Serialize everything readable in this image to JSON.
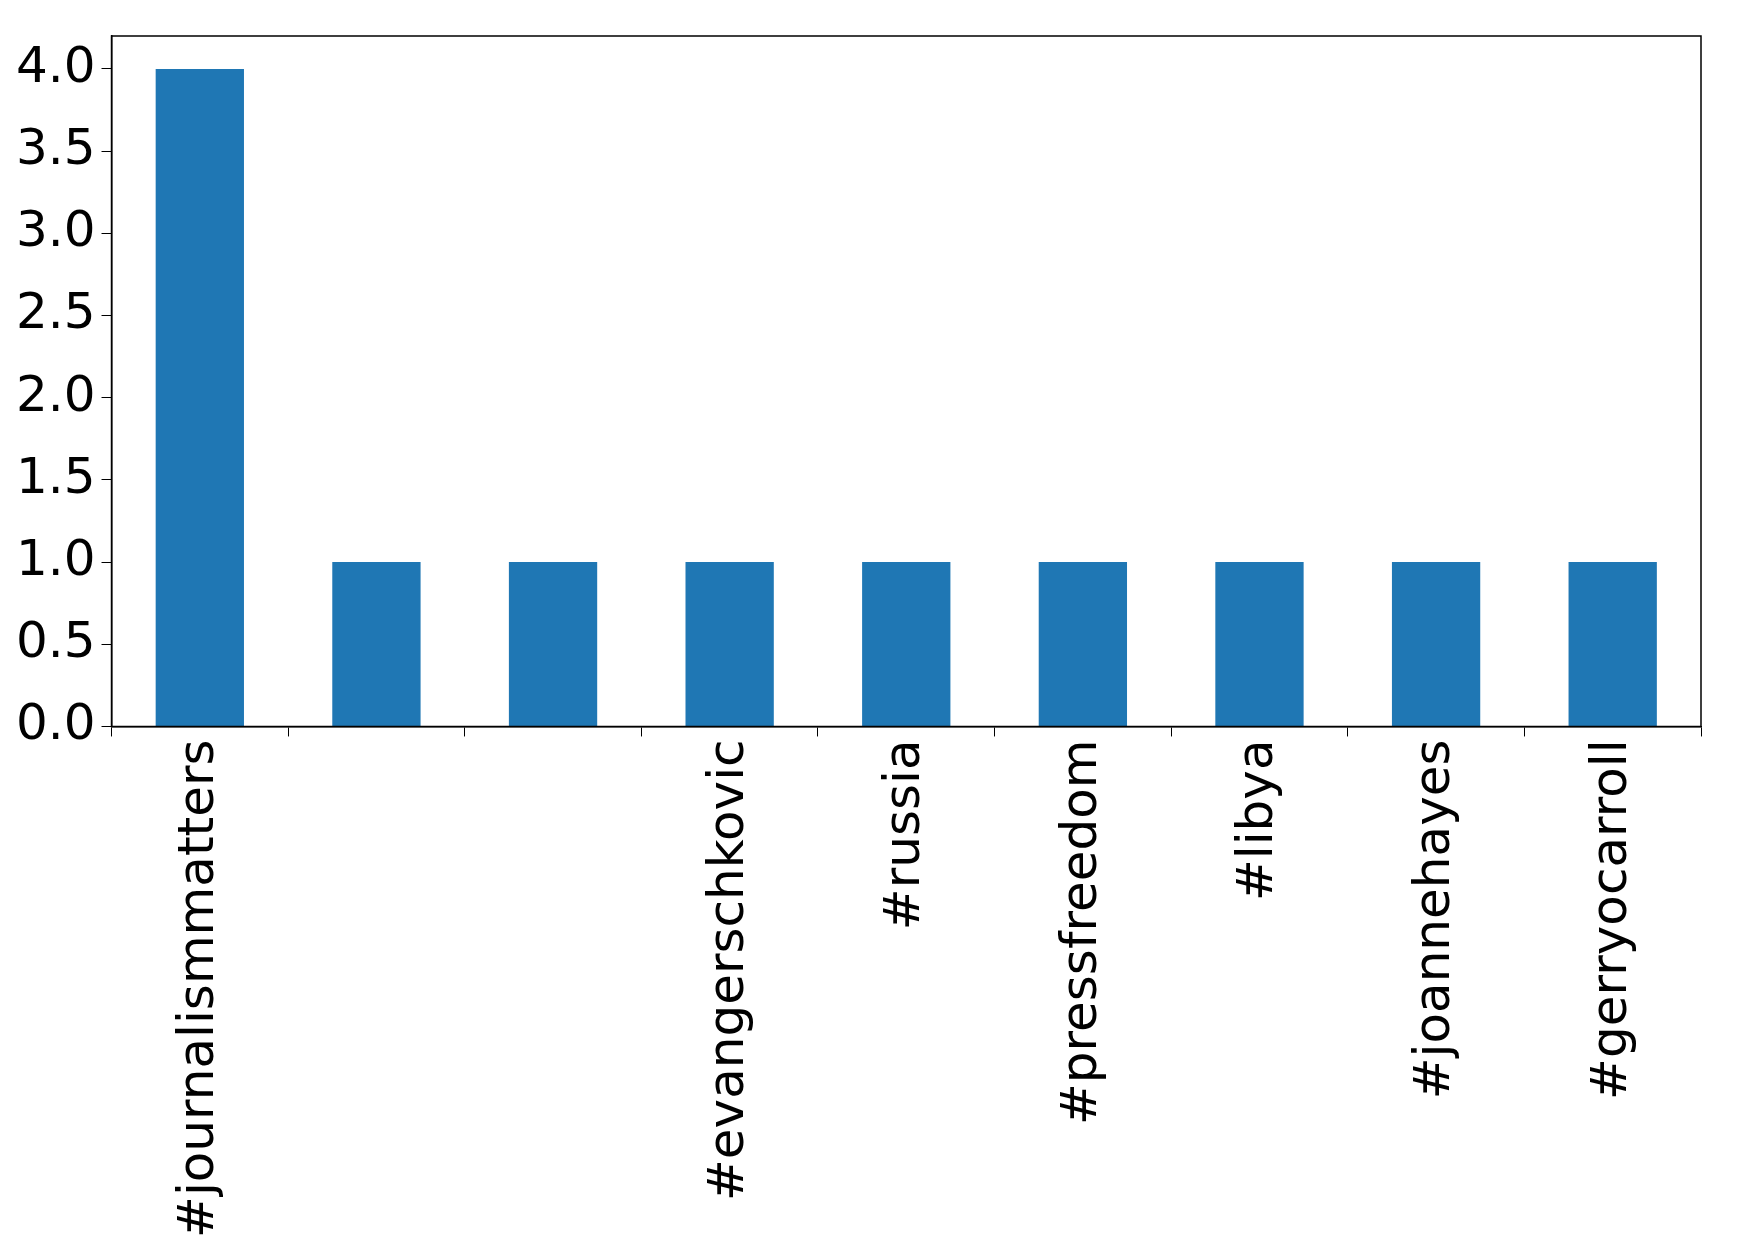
{
  "chart_data": {
    "type": "bar",
    "categories": [
      "#journalismmatters",
      null,
      null,
      "#evangerschkovic",
      "#russia",
      "#pressfreedom",
      "#libya",
      "#joannehayes",
      "#gerryocarroll"
    ],
    "values": [
      4,
      1,
      1,
      1,
      1,
      1,
      1,
      1,
      1
    ],
    "color": "#1f77b4",
    "ylim": [
      0,
      4.2
    ],
    "yticks": [
      {
        "value": 0,
        "label": "0.0"
      },
      {
        "value": 0.5,
        "label": "0.5"
      },
      {
        "value": 1,
        "label": "1.0"
      },
      {
        "value": 1.5,
        "label": "1.5"
      },
      {
        "value": 2,
        "label": "2.0"
      },
      {
        "value": 2.5,
        "label": "2.5"
      },
      {
        "value": 3,
        "label": "3.0"
      },
      {
        "value": 3.5,
        "label": "3.5"
      },
      {
        "value": 4,
        "label": "4.0"
      }
    ],
    "grid": false,
    "legend": false
  }
}
